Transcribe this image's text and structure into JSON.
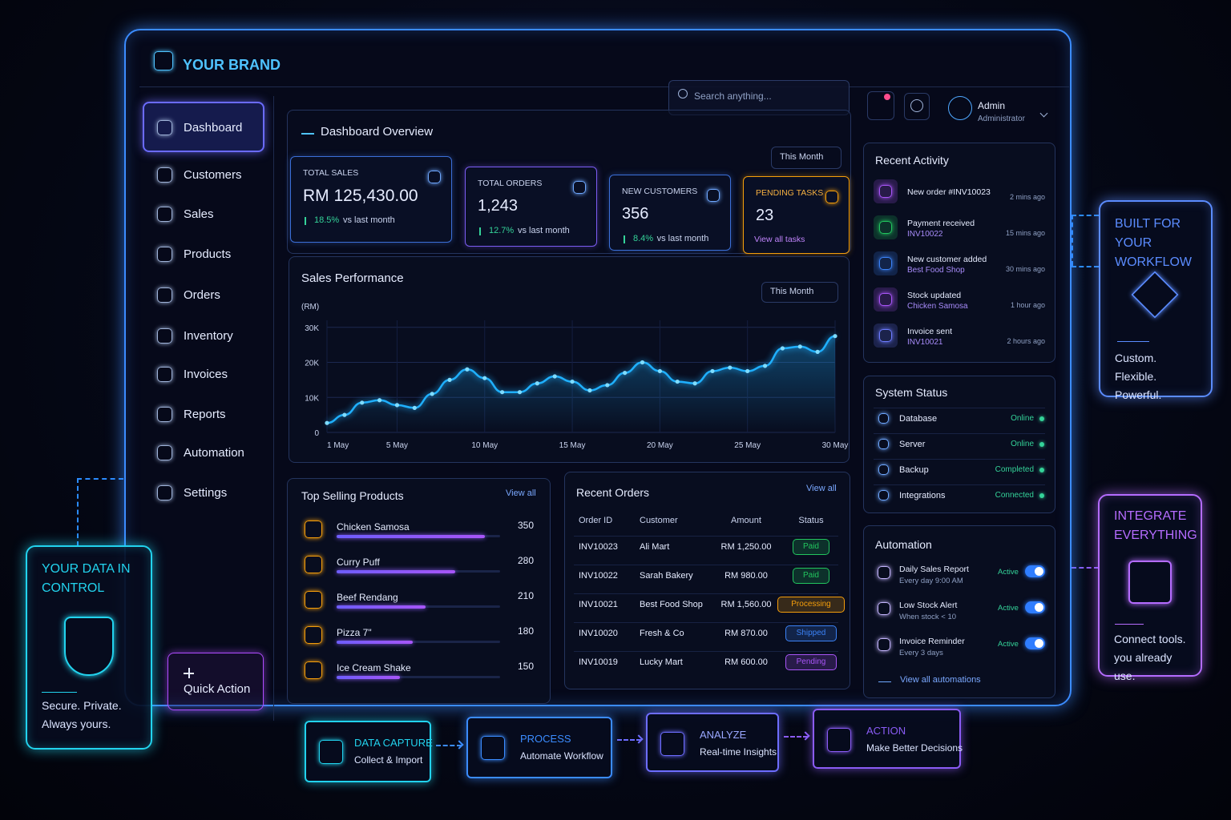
{
  "brand": "YOUR BRAND",
  "nav": [
    "Dashboard",
    "Customers",
    "Sales",
    "Products",
    "Orders",
    "Inventory",
    "Invoices",
    "Reports",
    "Automation",
    "Settings"
  ],
  "quick_action": "Quick Action",
  "search_placeholder": "Search anything...",
  "user": {
    "name": "Admin",
    "role": "Administrator"
  },
  "overview": {
    "title": "Dashboard Overview",
    "period": "This Month"
  },
  "kpis": [
    {
      "label": "TOTAL SALES",
      "value": "RM 125,430.00",
      "change": "18.5%",
      "note": "vs last month"
    },
    {
      "label": "TOTAL ORDERS",
      "value": "1,243",
      "change": "12.7%",
      "note": "vs last month"
    },
    {
      "label": "NEW CUSTOMERS",
      "value": "356",
      "change": "8.4%",
      "note": "vs last month"
    },
    {
      "label": "PENDING TASKS",
      "value": "23",
      "link": "View all tasks"
    }
  ],
  "sales_chart": {
    "type": "line",
    "title": "Sales Performance",
    "period": "This Month",
    "y_label": "(RM)",
    "x": [
      1,
      2,
      3,
      4,
      5,
      6,
      7,
      8,
      9,
      10,
      11,
      12,
      13,
      14,
      15,
      16,
      17,
      18,
      19,
      20,
      21,
      22,
      23,
      24,
      25,
      26,
      27,
      28,
      29,
      30
    ],
    "series": [
      {
        "color": "#1fb0ff",
        "values": [
          2700,
          5000,
          8500,
          9200,
          7800,
          7000,
          11000,
          15000,
          18000,
          15500,
          11500,
          11500,
          14000,
          16000,
          14500,
          12000,
          13500,
          17000,
          20000,
          17500,
          14500,
          14000,
          17500,
          18500,
          17500,
          19000,
          24000,
          24500,
          23000,
          27500
        ]
      }
    ],
    "xlim": [
      1,
      30
    ],
    "xticks": [
      {
        "value": 1,
        "label": "1 May"
      },
      {
        "value": 5,
        "label": "5 May"
      },
      {
        "value": 10,
        "label": "10 May"
      },
      {
        "value": 15,
        "label": "15 May"
      },
      {
        "value": 20,
        "label": "20 May"
      },
      {
        "value": 25,
        "label": "25 May"
      },
      {
        "value": 30,
        "label": "30 May"
      }
    ],
    "ylim": [
      0,
      32000
    ],
    "yticks": [
      0,
      {
        "value": 10000,
        "label": "10K"
      },
      {
        "value": 20000,
        "label": "20K"
      },
      {
        "value": 30000,
        "label": "30K"
      }
    ],
    "grid": true
  },
  "top_products": {
    "title": "Top Selling Products",
    "link": "View all",
    "items": [
      {
        "name": "Chicken Samosa",
        "sold": 350
      },
      {
        "name": "Curry Puff",
        "sold": 280
      },
      {
        "name": "Beef Rendang",
        "sold": 210
      },
      {
        "name": "Pizza 7\"",
        "sold": 180
      },
      {
        "name": "Ice Cream Shake",
        "sold": 150
      }
    ]
  },
  "recent_orders": {
    "title": "Recent Orders",
    "link": "View all",
    "columns": [
      "Order ID",
      "Customer",
      "Amount",
      "Status"
    ],
    "rows": [
      {
        "id": "INV10023",
        "customer": "Ali Mart",
        "amount": "RM 1,250.00",
        "status": "Paid",
        "status_color": "#22c55e"
      },
      {
        "id": "INV10022",
        "customer": "Sarah Bakery",
        "amount": "RM 980.00",
        "status": "Paid",
        "status_color": "#22c55e"
      },
      {
        "id": "INV10021",
        "customer": "Best Food Shop",
        "amount": "RM 1,560.00",
        "status": "Processing",
        "status_color": "#f59e0b"
      },
      {
        "id": "INV10020",
        "customer": "Fresh & Co",
        "amount": "RM 870.00",
        "status": "Shipped",
        "status_color": "#3b82f6"
      },
      {
        "id": "INV10019",
        "customer": "Lucky Mart",
        "amount": "RM 600.00",
        "status": "Pending",
        "status_color": "#a855f7"
      }
    ]
  },
  "recent_activity": {
    "title": "Recent Activity",
    "items": [
      {
        "title": "New order #INV10023",
        "time": "2 mins ago"
      },
      {
        "title": "Payment received",
        "detail": "INV10022",
        "time": "15 mins ago"
      },
      {
        "title": "New customer added",
        "detail": "Best Food Shop",
        "time": "30 mins ago"
      },
      {
        "title": "Stock updated",
        "detail": "Chicken Samosa",
        "time": "1 hour ago"
      },
      {
        "title": "Invoice sent",
        "detail": "INV10021",
        "time": "2 hours ago"
      }
    ]
  },
  "system_status": {
    "title": "System Status",
    "items": [
      {
        "name": "Database",
        "status": "Online"
      },
      {
        "name": "Server",
        "status": "Online"
      },
      {
        "name": "Backup",
        "status": "Completed"
      },
      {
        "name": "Integrations",
        "status": "Connected"
      }
    ]
  },
  "automation": {
    "title": "Automation",
    "link": "View all automations",
    "items": [
      {
        "name": "Daily Sales Report",
        "schedule": "Every day 9:00 AM",
        "state": "Active"
      },
      {
        "name": "Low Stock Alert",
        "schedule": "When stock < 10",
        "state": "Active"
      },
      {
        "name": "Invoice Reminder",
        "schedule": "Every 3 days",
        "state": "Active"
      }
    ]
  },
  "callouts": {
    "data_control": {
      "title": "YOUR DATA IN CONTROL",
      "text": "Secure. Private. Always yours."
    },
    "workflow": {
      "title": "BUILT FOR YOUR WORKFLOW",
      "text": "Custom. Flexible. Powerful."
    },
    "integrate": {
      "title": "INTEGRATE EVERYTHING",
      "text": "Connect tools. you already use."
    }
  },
  "pipeline": [
    {
      "title": "DATA CAPTURE",
      "text": "Collect & Import"
    },
    {
      "title": "PROCESS",
      "text": "Automate Workflow"
    },
    {
      "title": "ANALYZE",
      "text": "Real-time Insights"
    },
    {
      "title": "ACTION",
      "text": "Make Better Decisions"
    }
  ]
}
